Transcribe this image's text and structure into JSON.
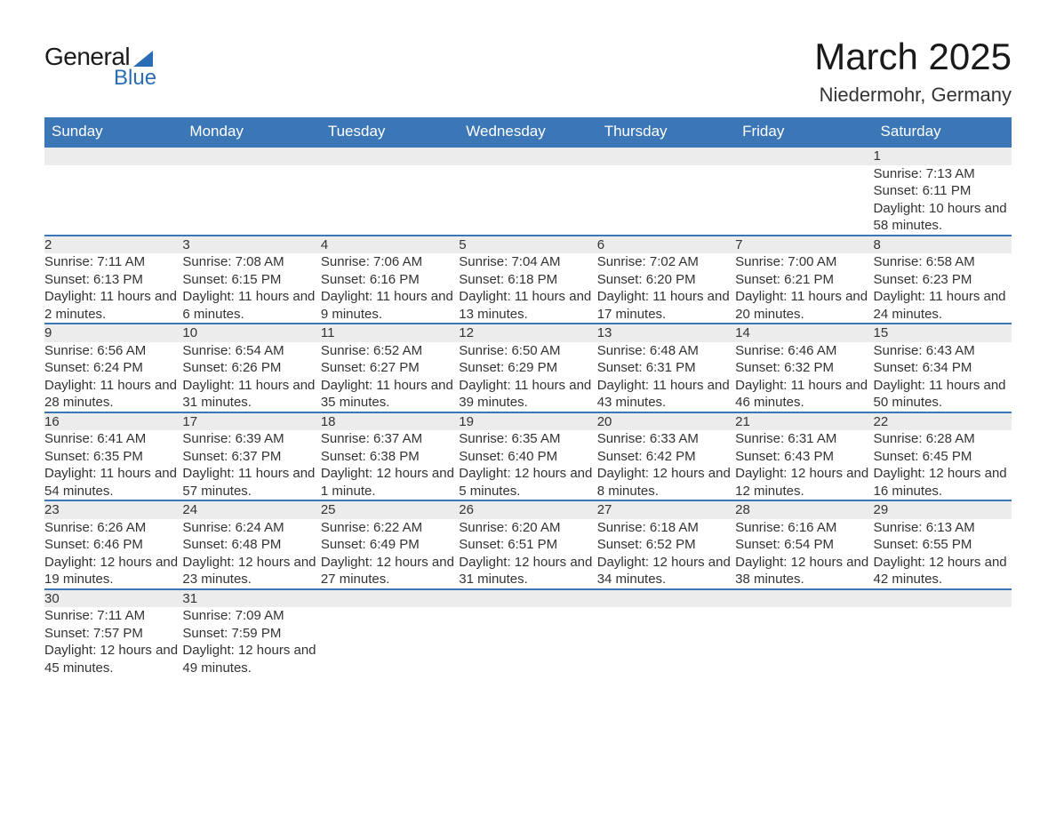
{
  "logo": {
    "text1": "General",
    "text2": "Blue"
  },
  "title": "March 2025",
  "location": "Niedermohr, Germany",
  "colors": {
    "header_bg": "#3b76b6",
    "header_text": "#ffffff",
    "row_divider": "#3b76b6",
    "daynum_bg": "#ececec",
    "body_text": "#333333",
    "logo_accent": "#2a6db5"
  },
  "day_headers": [
    "Sunday",
    "Monday",
    "Tuesday",
    "Wednesday",
    "Thursday",
    "Friday",
    "Saturday"
  ],
  "weeks": [
    [
      null,
      null,
      null,
      null,
      null,
      null,
      {
        "n": "1",
        "sunrise": "Sunrise: 7:13 AM",
        "sunset": "Sunset: 6:11 PM",
        "daylight": "Daylight: 10 hours and 58 minutes."
      }
    ],
    [
      {
        "n": "2",
        "sunrise": "Sunrise: 7:11 AM",
        "sunset": "Sunset: 6:13 PM",
        "daylight": "Daylight: 11 hours and 2 minutes."
      },
      {
        "n": "3",
        "sunrise": "Sunrise: 7:08 AM",
        "sunset": "Sunset: 6:15 PM",
        "daylight": "Daylight: 11 hours and 6 minutes."
      },
      {
        "n": "4",
        "sunrise": "Sunrise: 7:06 AM",
        "sunset": "Sunset: 6:16 PM",
        "daylight": "Daylight: 11 hours and 9 minutes."
      },
      {
        "n": "5",
        "sunrise": "Sunrise: 7:04 AM",
        "sunset": "Sunset: 6:18 PM",
        "daylight": "Daylight: 11 hours and 13 minutes."
      },
      {
        "n": "6",
        "sunrise": "Sunrise: 7:02 AM",
        "sunset": "Sunset: 6:20 PM",
        "daylight": "Daylight: 11 hours and 17 minutes."
      },
      {
        "n": "7",
        "sunrise": "Sunrise: 7:00 AM",
        "sunset": "Sunset: 6:21 PM",
        "daylight": "Daylight: 11 hours and 20 minutes."
      },
      {
        "n": "8",
        "sunrise": "Sunrise: 6:58 AM",
        "sunset": "Sunset: 6:23 PM",
        "daylight": "Daylight: 11 hours and 24 minutes."
      }
    ],
    [
      {
        "n": "9",
        "sunrise": "Sunrise: 6:56 AM",
        "sunset": "Sunset: 6:24 PM",
        "daylight": "Daylight: 11 hours and 28 minutes."
      },
      {
        "n": "10",
        "sunrise": "Sunrise: 6:54 AM",
        "sunset": "Sunset: 6:26 PM",
        "daylight": "Daylight: 11 hours and 31 minutes."
      },
      {
        "n": "11",
        "sunrise": "Sunrise: 6:52 AM",
        "sunset": "Sunset: 6:27 PM",
        "daylight": "Daylight: 11 hours and 35 minutes."
      },
      {
        "n": "12",
        "sunrise": "Sunrise: 6:50 AM",
        "sunset": "Sunset: 6:29 PM",
        "daylight": "Daylight: 11 hours and 39 minutes."
      },
      {
        "n": "13",
        "sunrise": "Sunrise: 6:48 AM",
        "sunset": "Sunset: 6:31 PM",
        "daylight": "Daylight: 11 hours and 43 minutes."
      },
      {
        "n": "14",
        "sunrise": "Sunrise: 6:46 AM",
        "sunset": "Sunset: 6:32 PM",
        "daylight": "Daylight: 11 hours and 46 minutes."
      },
      {
        "n": "15",
        "sunrise": "Sunrise: 6:43 AM",
        "sunset": "Sunset: 6:34 PM",
        "daylight": "Daylight: 11 hours and 50 minutes."
      }
    ],
    [
      {
        "n": "16",
        "sunrise": "Sunrise: 6:41 AM",
        "sunset": "Sunset: 6:35 PM",
        "daylight": "Daylight: 11 hours and 54 minutes."
      },
      {
        "n": "17",
        "sunrise": "Sunrise: 6:39 AM",
        "sunset": "Sunset: 6:37 PM",
        "daylight": "Daylight: 11 hours and 57 minutes."
      },
      {
        "n": "18",
        "sunrise": "Sunrise: 6:37 AM",
        "sunset": "Sunset: 6:38 PM",
        "daylight": "Daylight: 12 hours and 1 minute."
      },
      {
        "n": "19",
        "sunrise": "Sunrise: 6:35 AM",
        "sunset": "Sunset: 6:40 PM",
        "daylight": "Daylight: 12 hours and 5 minutes."
      },
      {
        "n": "20",
        "sunrise": "Sunrise: 6:33 AM",
        "sunset": "Sunset: 6:42 PM",
        "daylight": "Daylight: 12 hours and 8 minutes."
      },
      {
        "n": "21",
        "sunrise": "Sunrise: 6:31 AM",
        "sunset": "Sunset: 6:43 PM",
        "daylight": "Daylight: 12 hours and 12 minutes."
      },
      {
        "n": "22",
        "sunrise": "Sunrise: 6:28 AM",
        "sunset": "Sunset: 6:45 PM",
        "daylight": "Daylight: 12 hours and 16 minutes."
      }
    ],
    [
      {
        "n": "23",
        "sunrise": "Sunrise: 6:26 AM",
        "sunset": "Sunset: 6:46 PM",
        "daylight": "Daylight: 12 hours and 19 minutes."
      },
      {
        "n": "24",
        "sunrise": "Sunrise: 6:24 AM",
        "sunset": "Sunset: 6:48 PM",
        "daylight": "Daylight: 12 hours and 23 minutes."
      },
      {
        "n": "25",
        "sunrise": "Sunrise: 6:22 AM",
        "sunset": "Sunset: 6:49 PM",
        "daylight": "Daylight: 12 hours and 27 minutes."
      },
      {
        "n": "26",
        "sunrise": "Sunrise: 6:20 AM",
        "sunset": "Sunset: 6:51 PM",
        "daylight": "Daylight: 12 hours and 31 minutes."
      },
      {
        "n": "27",
        "sunrise": "Sunrise: 6:18 AM",
        "sunset": "Sunset: 6:52 PM",
        "daylight": "Daylight: 12 hours and 34 minutes."
      },
      {
        "n": "28",
        "sunrise": "Sunrise: 6:16 AM",
        "sunset": "Sunset: 6:54 PM",
        "daylight": "Daylight: 12 hours and 38 minutes."
      },
      {
        "n": "29",
        "sunrise": "Sunrise: 6:13 AM",
        "sunset": "Sunset: 6:55 PM",
        "daylight": "Daylight: 12 hours and 42 minutes."
      }
    ],
    [
      {
        "n": "30",
        "sunrise": "Sunrise: 7:11 AM",
        "sunset": "Sunset: 7:57 PM",
        "daylight": "Daylight: 12 hours and 45 minutes."
      },
      {
        "n": "31",
        "sunrise": "Sunrise: 7:09 AM",
        "sunset": "Sunset: 7:59 PM",
        "daylight": "Daylight: 12 hours and 49 minutes."
      },
      null,
      null,
      null,
      null,
      null
    ]
  ]
}
